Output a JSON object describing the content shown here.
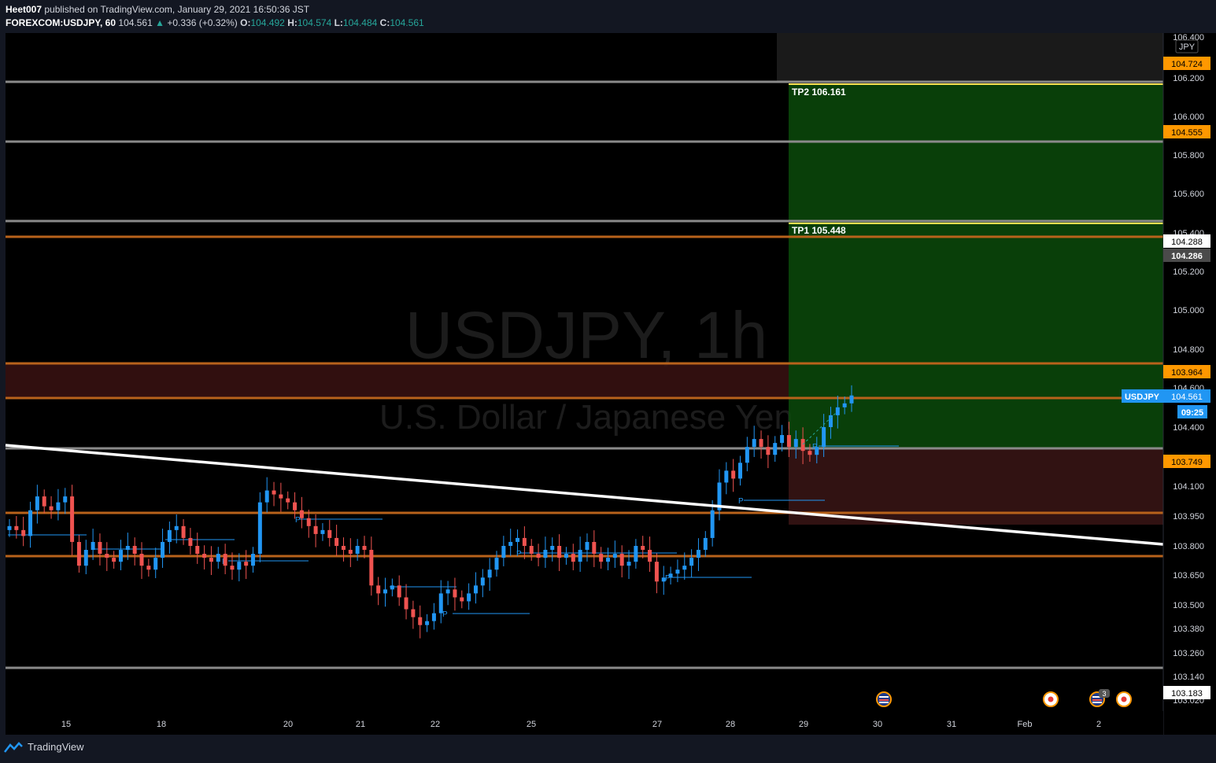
{
  "header": {
    "author": "Heet007",
    "published": "published on TradingView.com, January 29, 2021 16:50:36 JST",
    "symbol": "FOREXCOM:USDJPY, 60",
    "last": "104.561",
    "change": "+0.336 (+0.32%)",
    "o_label": "O:",
    "o": "104.492",
    "h_label": "H:",
    "h": "104.574",
    "l_label": "L:",
    "l": "104.484",
    "c_label": "C:",
    "c": "104.561"
  },
  "footer": {
    "brand": "TradingView"
  },
  "colors": {
    "background": "#000000",
    "axis_bg": "#131722",
    "up": "#2196f3",
    "down": "#ef5350",
    "orange_level": "#b8621b",
    "gray_level": "#8a8a8a",
    "target_zone": "#0a4a0a",
    "stop_zone": "#3a1515",
    "resistance_zone": "#3a1212",
    "tp_line": "#f5e050",
    "trendline": "#ffffff",
    "price_tag": "#ff9800",
    "last_price_tag": "#2196f3"
  },
  "chart_data": {
    "type": "candlestick",
    "symbol": "USDJPY",
    "timeframe": "1h",
    "watermark_title": "USDJPY, 1h",
    "watermark_subtitle": "U.S. Dollar / Japanese Yen",
    "currency": "JPY",
    "y_axis_ticks": [
      "106.400",
      "106.200",
      "106.000",
      "105.800",
      "105.600",
      "105.400",
      "105.200",
      "105.000",
      "104.800",
      "104.600",
      "104.400",
      "104.100",
      "103.950",
      "103.800",
      "103.650",
      "103.500",
      "103.380",
      "103.260",
      "103.140",
      "103.020"
    ],
    "x_axis_ticks": [
      "15",
      "18",
      "20",
      "21",
      "22",
      "25",
      "27",
      "28",
      "29",
      "30",
      "31",
      "Feb",
      "2"
    ],
    "last_price": {
      "label": "USDJPY",
      "value": "104.561",
      "countdown": "09:25"
    },
    "price_tags": [
      "104.724",
      "104.555",
      "104.288",
      "104.286",
      "103.964",
      "103.749",
      "103.183"
    ],
    "trade_targets": [
      {
        "label": "TP2 106.161",
        "value": 106.161
      },
      {
        "label": "TP1 105.448",
        "value": 105.448
      }
    ],
    "horizontal_levels": {
      "gray": [
        106.161,
        105.855,
        105.448,
        104.258,
        103.16
      ],
      "orange": [
        105.378,
        104.722,
        104.555,
        103.964,
        103.749
      ]
    },
    "trendline": {
      "start": {
        "x": "Jan 14",
        "y": 104.25
      },
      "end": {
        "x": "Feb 2",
        "y": 103.81
      }
    },
    "pivot_marker": "P",
    "event_icons": [
      "us-flag-icon",
      "jp-flag-icon",
      "us-flag-icon",
      "jp-flag-icon"
    ],
    "event_badge": "3",
    "candles_close": [
      103.9,
      103.88,
      103.85,
      103.98,
      104.05,
      104.0,
      103.98,
      104.02,
      104.05,
      103.82,
      103.7,
      103.78,
      103.82,
      103.76,
      103.74,
      103.72,
      103.78,
      103.8,
      103.76,
      103.7,
      103.68,
      103.74,
      103.82,
      103.88,
      103.9,
      103.84,
      103.8,
      103.76,
      103.74,
      103.72,
      103.76,
      103.7,
      103.68,
      103.72,
      103.7,
      103.76,
      104.02,
      104.08,
      104.06,
      104.04,
      104.02,
      103.98,
      103.94,
      103.9,
      103.86,
      103.88,
      103.84,
      103.8,
      103.78,
      103.76,
      103.8,
      103.78,
      103.6,
      103.56,
      103.58,
      103.6,
      103.54,
      103.48,
      103.44,
      103.4,
      103.42,
      103.46,
      103.56,
      103.58,
      103.54,
      103.52,
      103.56,
      103.6,
      103.64,
      103.68,
      103.74,
      103.8,
      103.82,
      103.84,
      103.8,
      103.76,
      103.74,
      103.78,
      103.8,
      103.74,
      103.76,
      103.72,
      103.78,
      103.82,
      103.76,
      103.72,
      103.74,
      103.76,
      103.7,
      103.72,
      103.8,
      103.78,
      103.72,
      103.62,
      103.64,
      103.66,
      103.68,
      103.7,
      103.74,
      103.78,
      103.84,
      103.98,
      104.12,
      104.18,
      104.14,
      104.22,
      104.3,
      104.34,
      104.3,
      104.26,
      104.32,
      104.36,
      104.3,
      104.34,
      104.28,
      104.26,
      104.3,
      104.4,
      104.46,
      104.5,
      104.52,
      104.56
    ]
  }
}
